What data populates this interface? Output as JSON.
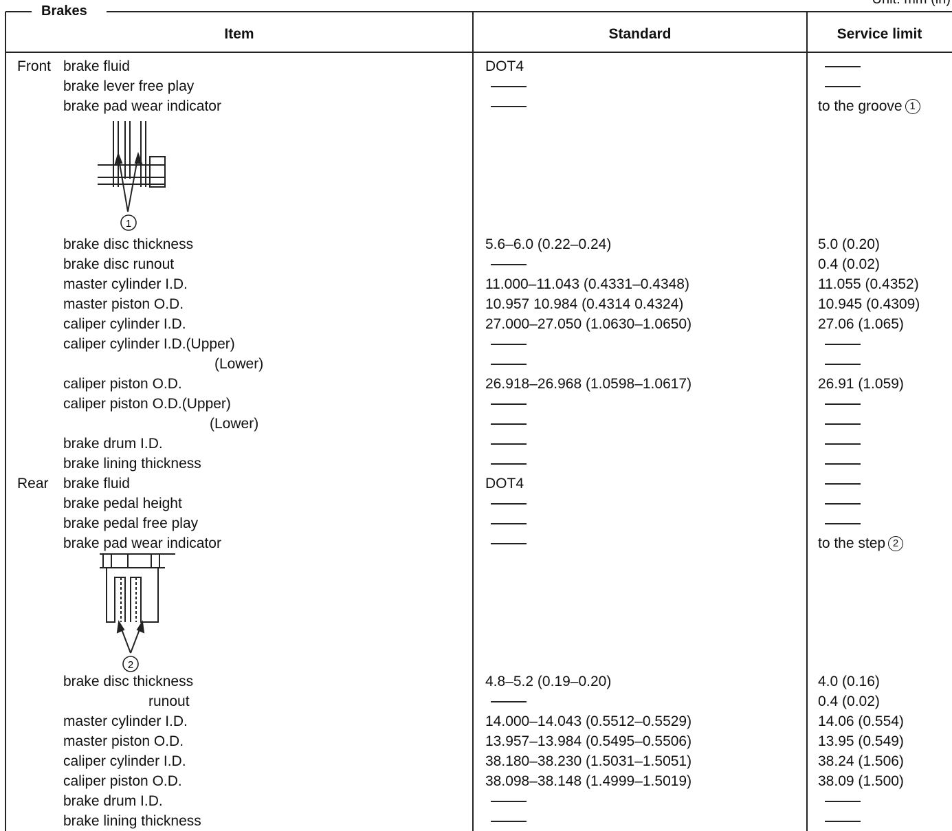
{
  "section_title": "Brakes",
  "unit_label": "Unit: mm (in)",
  "columns": {
    "item": "Item",
    "standard": "Standard",
    "service_limit": "Service limit"
  },
  "rows": [
    {
      "pos": "Front",
      "item": "brake fluid",
      "standard": "DOT4",
      "limit": ""
    },
    {
      "pos": "",
      "item": "brake lever free play",
      "standard": "",
      "limit": ""
    },
    {
      "pos": "",
      "item": "brake pad wear indicator",
      "standard": "",
      "limit": "to the groove"
    },
    {
      "pos": "",
      "item": "brake disc thickness",
      "standard": "5.6–6.0 (0.22–0.24)",
      "limit": "5.0 (0.20)"
    },
    {
      "pos": "",
      "item": "brake disc runout",
      "standard": "",
      "limit": "0.4 (0.02)"
    },
    {
      "pos": "",
      "item": "master cylinder I.D.",
      "standard": "11.000–11.043 (0.4331–0.4348)",
      "limit": "11.055 (0.4352)"
    },
    {
      "pos": "",
      "item": "master piston O.D.",
      "standard": "10.957 10.984 (0.4314 0.4324)",
      "limit": "10.945 (0.4309)"
    },
    {
      "pos": "",
      "item": "caliper cylinder I.D.",
      "standard": "27.000–27.050 (1.0630–1.0650)",
      "limit": "27.06 (1.065)"
    },
    {
      "pos": "",
      "item": "caliper cylinder I.D.(Upper)",
      "standard": "",
      "limit": ""
    },
    {
      "pos": "",
      "item": "(Lower)",
      "standard": "",
      "limit": ""
    },
    {
      "pos": "",
      "item": "caliper piston O.D.",
      "standard": "26.918–26.968 (1.0598–1.0617)",
      "limit": "26.91 (1.059)"
    },
    {
      "pos": "",
      "item": "caliper piston O.D.(Upper)",
      "standard": "",
      "limit": ""
    },
    {
      "pos": "",
      "item": "(Lower)",
      "standard": "",
      "limit": ""
    },
    {
      "pos": "",
      "item": "brake drum I.D.",
      "standard": "",
      "limit": ""
    },
    {
      "pos": "",
      "item": "brake lining thickness",
      "standard": "",
      "limit": ""
    },
    {
      "pos": "Rear",
      "item": "brake fluid",
      "standard": "DOT4",
      "limit": ""
    },
    {
      "pos": "",
      "item": "brake pedal height",
      "standard": "",
      "limit": ""
    },
    {
      "pos": "",
      "item": "brake pedal free play",
      "standard": "",
      "limit": ""
    },
    {
      "pos": "",
      "item": "brake pad wear indicator",
      "standard": "",
      "limit": "to the step"
    },
    {
      "pos": "",
      "item": "brake disc thickness",
      "standard": "4.8–5.2 (0.19–0.20)",
      "limit": "4.0 (0.16)"
    },
    {
      "pos": "",
      "item": "runout",
      "standard": "",
      "limit": "0.4 (0.02)"
    },
    {
      "pos": "",
      "item": "master cylinder I.D.",
      "standard": "14.000–14.043 (0.5512–0.5529)",
      "limit": "14.06 (0.554)"
    },
    {
      "pos": "",
      "item": "master piston O.D.",
      "standard": "13.957–13.984 (0.5495–0.5506)",
      "limit": "13.95 (0.549)"
    },
    {
      "pos": "",
      "item": "caliper cylinder I.D.",
      "standard": "38.180–38.230 (1.5031–1.5051)",
      "limit": "38.24 (1.506)"
    },
    {
      "pos": "",
      "item": "caliper piston O.D.",
      "standard": "38.098–38.148 (1.4999–1.5019)",
      "limit": "38.09 (1.500)"
    },
    {
      "pos": "",
      "item": "brake drum I.D.",
      "standard": "",
      "limit": ""
    },
    {
      "pos": "",
      "item": "brake lining thickness",
      "standard": "",
      "limit": ""
    }
  ],
  "callouts": {
    "front_marker": "1",
    "rear_marker": "2"
  }
}
